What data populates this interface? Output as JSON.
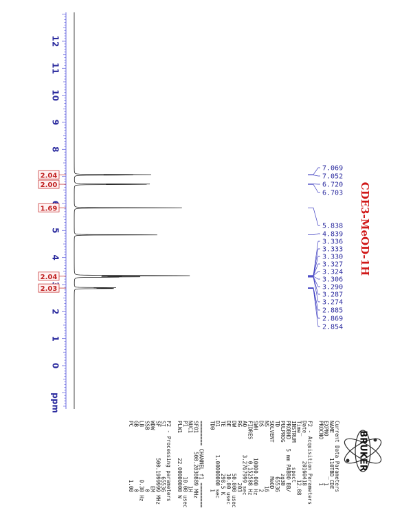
{
  "chart_data": {
    "type": "line",
    "title": "CDE3-MeOD-1H",
    "xlabel": "ppm",
    "xlim": [
      13,
      -1.5
    ],
    "ticks": [
      12,
      11,
      10,
      9,
      8,
      7,
      6,
      5,
      4,
      3,
      2,
      1,
      0
    ],
    "peaks": [
      {
        "ppm": 7.069,
        "height": 0.55
      },
      {
        "ppm": 7.052,
        "height": 0.5
      },
      {
        "ppm": 6.72,
        "height": 0.6
      },
      {
        "ppm": 6.703,
        "height": 0.55
      },
      {
        "ppm": 5.838,
        "height": 1.0
      },
      {
        "ppm": 4.839,
        "height": 0.8
      },
      {
        "ppm": 3.336,
        "height": 0.2
      },
      {
        "ppm": 3.333,
        "height": 0.25
      },
      {
        "ppm": 3.33,
        "height": 0.3
      },
      {
        "ppm": 3.327,
        "height": 0.25
      },
      {
        "ppm": 3.324,
        "height": 0.2
      },
      {
        "ppm": 3.306,
        "height": 0.28
      },
      {
        "ppm": 3.29,
        "height": 0.3
      },
      {
        "ppm": 3.287,
        "height": 0.3
      },
      {
        "ppm": 3.274,
        "height": 0.28
      },
      {
        "ppm": 2.885,
        "height": 0.25
      },
      {
        "ppm": 2.869,
        "height": 0.35
      },
      {
        "ppm": 2.854,
        "height": 0.25
      }
    ],
    "peak_labels": [
      "7.069",
      "7.052",
      "6.720",
      "6.703",
      "5.838",
      "4.839",
      "3.336",
      "3.333",
      "3.330",
      "3.327",
      "3.324",
      "3.306",
      "3.290",
      "3.287",
      "3.274",
      "2.885",
      "2.869",
      "2.854"
    ],
    "integrals": [
      {
        "ppm": 7.06,
        "label": "2.04"
      },
      {
        "ppm": 6.71,
        "label": "2.00"
      },
      {
        "ppm": 5.84,
        "label": "1.69"
      },
      {
        "ppm": 3.31,
        "label": "2.04"
      },
      {
        "ppm": 2.87,
        "label": "2.03"
      }
    ]
  },
  "params": {
    "logo_text": "BRUKER",
    "lines": [
      "Current Data Parameters",
      "NAME        110TBD_CDE",
      "EXPNO               1",
      "PROCNO              1",
      "",
      "F2 - Acquisition Parameters",
      "Date_        20160418",
      "Time               12.08",
      "INSTRUM        spect",
      "PROBHD   5 mm PABBO BB/",
      "PULPROG          zg30",
      "TD                65536",
      "SOLVENT           MeOD",
      "NS                   16",
      "DS                    2",
      "SWH         10000.000 Hz",
      "FIDRES       0.152588 Hz",
      "AQ         3.2767999 sec",
      "RG                  203",
      "DW               50.000 usec",
      "DE               10.00 usec",
      "TE               298.5 K",
      "D1         1.00000000 sec",
      "TD0                   1",
      "",
      "======== CHANNEL f1 ========",
      "SFO1      500.2030889 MHz",
      "NUC1                 1H",
      "P1                10.00 usec",
      "PLW1        22.00000000 W",
      "",
      "F2 - Processing parameters",
      "SI                65536",
      "SF          500.1999999 MHz",
      "WDW                  EM",
      "SSB                   0",
      "LB                 0.30 Hz",
      "GB                    0",
      "PC                 1.00"
    ]
  }
}
